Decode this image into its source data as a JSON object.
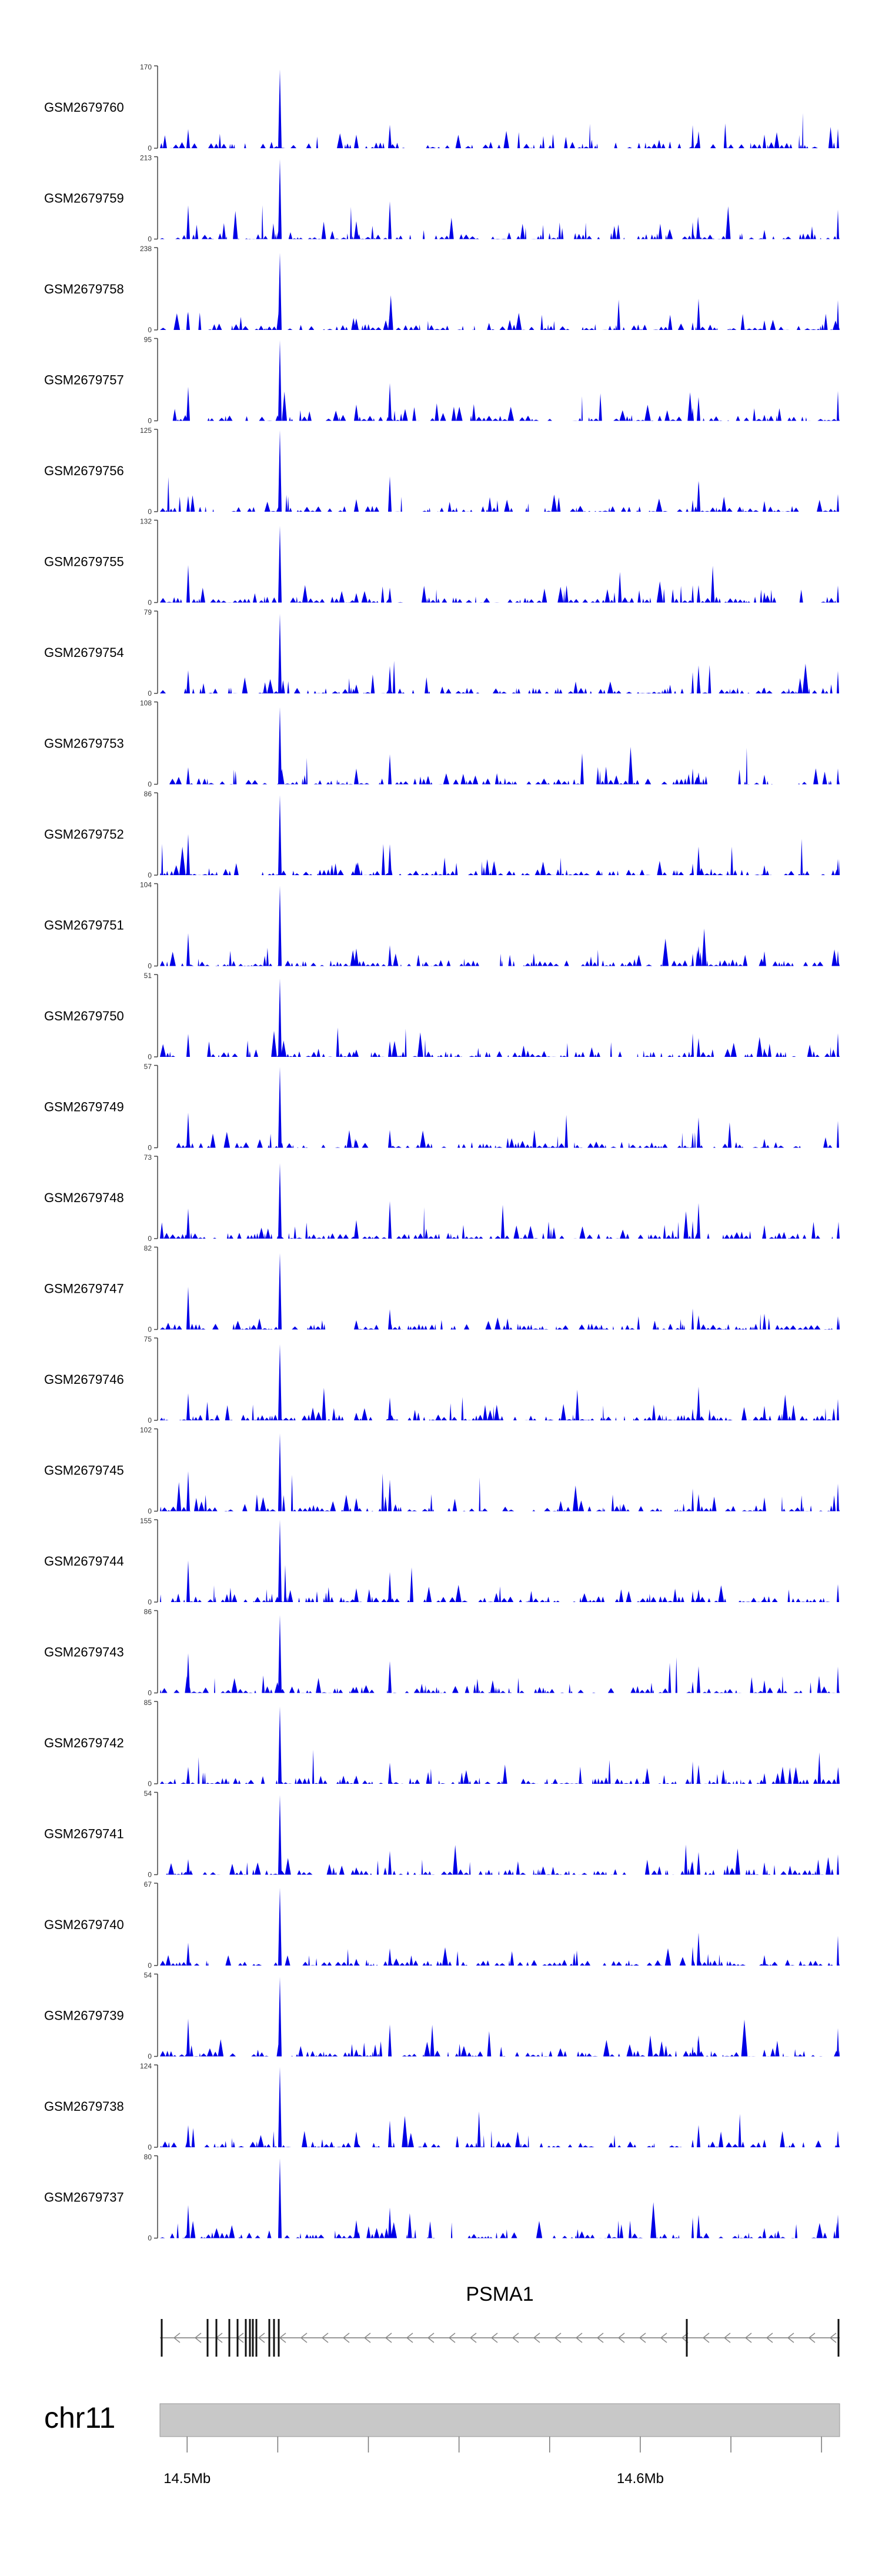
{
  "chart_data": {
    "type": "area",
    "tracks": [
      {
        "name": "GSM2679760",
        "ymin": "0",
        "ymax": "170",
        "seed": 1
      },
      {
        "name": "GSM2679759",
        "ymin": "0",
        "ymax": "213",
        "seed": 2
      },
      {
        "name": "GSM2679758",
        "ymin": "0",
        "ymax": "238",
        "seed": 3
      },
      {
        "name": "GSM2679757",
        "ymin": "0",
        "ymax": "95",
        "seed": 4
      },
      {
        "name": "GSM2679756",
        "ymin": "0",
        "ymax": "125",
        "seed": 5
      },
      {
        "name": "GSM2679755",
        "ymin": "0",
        "ymax": "132",
        "seed": 6
      },
      {
        "name": "GSM2679754",
        "ymin": "0",
        "ymax": "79",
        "seed": 7
      },
      {
        "name": "GSM2679753",
        "ymin": "0",
        "ymax": "108",
        "seed": 8
      },
      {
        "name": "GSM2679752",
        "ymin": "0",
        "ymax": "86",
        "seed": 9
      },
      {
        "name": "GSM2679751",
        "ymin": "0",
        "ymax": "104",
        "seed": 10
      },
      {
        "name": "GSM2679750",
        "ymin": "0",
        "ymax": "51",
        "seed": 11
      },
      {
        "name": "GSM2679749",
        "ymin": "0",
        "ymax": "57",
        "seed": 12
      },
      {
        "name": "GSM2679748",
        "ymin": "0",
        "ymax": "73",
        "seed": 13
      },
      {
        "name": "GSM2679747",
        "ymin": "0",
        "ymax": "82",
        "seed": 14
      },
      {
        "name": "GSM2679746",
        "ymin": "0",
        "ymax": "75",
        "seed": 15
      },
      {
        "name": "GSM2679745",
        "ymin": "0",
        "ymax": "102",
        "seed": 16
      },
      {
        "name": "GSM2679744",
        "ymin": "0",
        "ymax": "155",
        "seed": 17
      },
      {
        "name": "GSM2679743",
        "ymin": "0",
        "ymax": "86",
        "seed": 18
      },
      {
        "name": "GSM2679742",
        "ymin": "0",
        "ymax": "85",
        "seed": 19
      },
      {
        "name": "GSM2679741",
        "ymin": "0",
        "ymax": "54",
        "seed": 20
      },
      {
        "name": "GSM2679740",
        "ymin": "0",
        "ymax": "67",
        "seed": 21
      },
      {
        "name": "GSM2679739",
        "ymin": "0",
        "ymax": "54",
        "seed": 22
      },
      {
        "name": "GSM2679738",
        "ymin": "0",
        "ymax": "124",
        "seed": 23
      },
      {
        "name": "GSM2679737",
        "ymin": "0",
        "ymax": "80",
        "seed": 24
      }
    ],
    "xrange_mb": [
      14.494,
      14.644
    ],
    "gene": {
      "name": "PSMA1",
      "strand": "-",
      "start_mb": 14.494,
      "end_mb": 14.644
    },
    "chromosome": "chr11",
    "ticks_mb": [
      14.5,
      14.52,
      14.54,
      14.56,
      14.58,
      14.6,
      14.62,
      14.64
    ],
    "tick_labels": [
      {
        "mb": 14.5,
        "label": "14.5Mb"
      },
      {
        "mb": 14.6,
        "label": "14.6Mb"
      }
    ],
    "fill_color": "#0000e6",
    "grid": false
  }
}
